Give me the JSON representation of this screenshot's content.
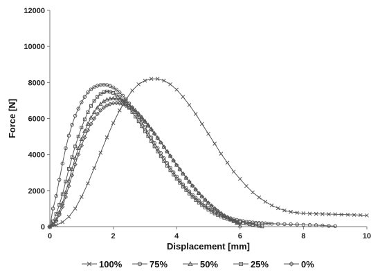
{
  "chart_data": {
    "type": "line",
    "title": "",
    "xlabel": "Displacement [mm]",
    "ylabel": "Force [N]",
    "xlim": [
      0,
      10
    ],
    "ylim": [
      0,
      12000
    ],
    "x_ticks": [
      0,
      2,
      4,
      6,
      8,
      10
    ],
    "y_ticks": [
      0,
      2000,
      4000,
      6000,
      8000,
      10000,
      12000
    ],
    "x_tick_labels": [
      "0",
      "2",
      "4",
      "6",
      "8",
      "10"
    ],
    "y_tick_labels": [
      "0",
      "2000",
      "4000",
      "6000",
      "8000",
      "10000",
      "12000"
    ],
    "grid": false,
    "legend_position": "bottom",
    "series": [
      {
        "name": "100%",
        "marker": "x",
        "color": "#555555",
        "x": [
          0,
          0.2,
          0.4,
          0.6,
          0.8,
          1.0,
          1.2,
          1.4,
          1.6,
          1.8,
          2.0,
          2.2,
          2.4,
          2.6,
          2.8,
          3.0,
          3.2,
          3.4,
          3.6,
          3.8,
          4.0,
          4.2,
          4.4,
          4.6,
          4.8,
          5.0,
          5.2,
          5.4,
          5.6,
          5.8,
          6.0,
          6.2,
          6.4,
          6.6,
          6.8,
          7.0,
          7.2,
          7.4,
          7.6,
          7.8,
          8.0,
          8.2,
          8.4,
          8.6,
          8.8,
          9.0,
          9.2,
          9.4,
          9.6,
          9.8,
          10.0
        ],
        "y": [
          0,
          80,
          250,
          550,
          1000,
          1650,
          2400,
          3250,
          4100,
          4950,
          5750,
          6450,
          7050,
          7550,
          7900,
          8100,
          8200,
          8200,
          8100,
          7900,
          7600,
          7200,
          6750,
          6250,
          5700,
          5150,
          4600,
          4050,
          3550,
          3050,
          2650,
          2250,
          1900,
          1620,
          1380,
          1180,
          1020,
          900,
          820,
          770,
          740,
          720,
          710,
          700,
          690,
          680,
          670,
          660,
          650,
          640,
          620
        ]
      },
      {
        "name": "75%",
        "marker": "circle",
        "color": "#555555",
        "x": [
          0,
          0.1,
          0.2,
          0.3,
          0.4,
          0.5,
          0.6,
          0.7,
          0.8,
          0.9,
          1.0,
          1.1,
          1.2,
          1.3,
          1.4,
          1.5,
          1.6,
          1.7,
          1.8,
          1.9,
          2.0,
          2.1,
          2.2,
          2.3,
          2.4,
          2.5,
          2.6,
          2.7,
          2.8,
          2.9,
          3.0,
          3.1,
          3.2,
          3.3,
          3.4,
          3.5,
          3.6,
          3.7,
          3.8,
          3.9,
          4.0,
          4.1,
          4.2,
          4.3,
          4.4,
          4.5,
          4.6,
          4.7,
          4.8,
          4.9,
          5.0,
          5.1,
          5.2,
          5.3,
          5.4,
          5.5,
          5.6,
          5.7,
          5.8,
          5.9,
          6.0,
          6.1,
          6.2,
          6.3,
          6.4,
          6.5,
          6.6,
          6.7,
          6.8,
          6.9,
          7.0,
          7.2,
          7.4,
          7.6,
          7.8,
          8.0,
          8.2,
          8.4,
          8.6,
          8.8,
          9.0
        ],
        "y": [
          0,
          1000,
          1700,
          2600,
          3500,
          4350,
          5050,
          5650,
          6150,
          6550,
          6900,
          7200,
          7450,
          7620,
          7740,
          7820,
          7860,
          7870,
          7860,
          7810,
          7720,
          7600,
          7450,
          7270,
          7060,
          6840,
          6600,
          6350,
          6080,
          5800,
          5520,
          5230,
          4940,
          4650,
          4360,
          4080,
          3800,
          3530,
          3270,
          3020,
          2780,
          2560,
          2340,
          2140,
          1950,
          1770,
          1600,
          1450,
          1300,
          1170,
          1040,
          930,
          830,
          740,
          660,
          590,
          520,
          460,
          410,
          370,
          330,
          300,
          270,
          250,
          230,
          210,
          200,
          190,
          180,
          170,
          160,
          150,
          140,
          130,
          120,
          100,
          90,
          80,
          60,
          40,
          30
        ]
      },
      {
        "name": "50%",
        "marker": "triangle",
        "color": "#555555",
        "x": [
          0,
          0.1,
          0.2,
          0.3,
          0.4,
          0.5,
          0.6,
          0.7,
          0.8,
          0.9,
          1.0,
          1.1,
          1.2,
          1.3,
          1.4,
          1.5,
          1.6,
          1.7,
          1.8,
          1.9,
          2.0,
          2.1,
          2.2,
          2.3,
          2.4,
          2.5,
          2.6,
          2.7,
          2.8,
          2.9,
          3.0,
          3.1,
          3.2,
          3.3,
          3.4,
          3.5,
          3.6,
          3.7,
          3.8,
          3.9,
          4.0,
          4.1,
          4.2,
          4.3,
          4.4,
          4.5,
          4.6,
          4.7,
          4.8,
          4.9,
          5.0,
          5.1,
          5.2,
          5.3,
          5.4,
          5.5,
          5.6,
          5.7,
          5.8,
          5.9,
          6.0
        ],
        "y": [
          0,
          150,
          400,
          800,
          1300,
          1900,
          2550,
          3200,
          3800,
          4350,
          4850,
          5300,
          5700,
          6050,
          6350,
          6600,
          6800,
          6950,
          7050,
          7100,
          7120,
          7100,
          7050,
          6980,
          6880,
          6760,
          6620,
          6460,
          6280,
          6080,
          5870,
          5650,
          5420,
          5180,
          4930,
          4680,
          4430,
          4170,
          3920,
          3670,
          3420,
          3180,
          2940,
          2710,
          2490,
          2270,
          2060,
          1860,
          1670,
          1490,
          1320,
          1160,
          1010,
          870,
          740,
          620,
          510,
          400,
          300,
          200,
          50
        ]
      },
      {
        "name": "25%",
        "marker": "square",
        "color": "#555555",
        "x": [
          0,
          0.1,
          0.2,
          0.3,
          0.4,
          0.5,
          0.6,
          0.7,
          0.8,
          0.9,
          1.0,
          1.1,
          1.2,
          1.3,
          1.4,
          1.5,
          1.6,
          1.7,
          1.8,
          1.9,
          2.0,
          2.1,
          2.2,
          2.3,
          2.4,
          2.5,
          2.6,
          2.7,
          2.8,
          2.9,
          3.0,
          3.1,
          3.2,
          3.3,
          3.4,
          3.5,
          3.6,
          3.7,
          3.8,
          3.9,
          4.0,
          4.1,
          4.2,
          4.3,
          4.4,
          4.5,
          4.6,
          4.7,
          4.8,
          4.9,
          5.0,
          5.1,
          5.2,
          5.3,
          5.4,
          5.5,
          5.6,
          5.7,
          5.8,
          5.9,
          6.0,
          6.1,
          6.2,
          6.3,
          6.4,
          6.5,
          6.6,
          6.7
        ],
        "y": [
          0,
          300,
          700,
          1200,
          1800,
          2500,
          3200,
          3850,
          4450,
          5000,
          5500,
          5950,
          6350,
          6700,
          6980,
          7200,
          7360,
          7460,
          7500,
          7480,
          7420,
          7320,
          7180,
          7010,
          6810,
          6590,
          6350,
          6100,
          5840,
          5570,
          5290,
          5010,
          4730,
          4450,
          4170,
          3900,
          3630,
          3370,
          3120,
          2880,
          2650,
          2430,
          2220,
          2020,
          1830,
          1650,
          1480,
          1330,
          1190,
          1060,
          940,
          830,
          730,
          640,
          560,
          490,
          430,
          380,
          330,
          290,
          250,
          210,
          170,
          130,
          100,
          70,
          40,
          10
        ]
      },
      {
        "name": "0%",
        "marker": "diamond",
        "color": "#555555",
        "x": [
          0,
          0.1,
          0.2,
          0.3,
          0.4,
          0.5,
          0.6,
          0.7,
          0.8,
          0.9,
          1.0,
          1.1,
          1.2,
          1.3,
          1.4,
          1.5,
          1.6,
          1.7,
          1.8,
          1.9,
          2.0,
          2.1,
          2.2,
          2.3,
          2.4,
          2.5,
          2.6,
          2.7,
          2.8,
          2.9,
          3.0,
          3.1,
          3.2,
          3.3,
          3.4,
          3.5,
          3.6,
          3.7,
          3.8,
          3.9,
          4.0,
          4.1,
          4.2,
          4.3,
          4.4,
          4.5,
          4.6,
          4.7,
          4.8,
          4.9,
          5.0,
          5.1,
          5.2,
          5.3,
          5.4,
          5.5,
          5.6,
          5.7,
          5.8,
          5.9,
          6.0
        ],
        "y": [
          0,
          100,
          300,
          650,
          1100,
          1650,
          2250,
          2850,
          3450,
          4000,
          4500,
          4950,
          5350,
          5700,
          6000,
          6250,
          6450,
          6600,
          6720,
          6800,
          6850,
          6860,
          6840,
          6790,
          6710,
          6610,
          6490,
          6350,
          6190,
          6010,
          5810,
          5600,
          5380,
          5150,
          4910,
          4670,
          4420,
          4170,
          3920,
          3670,
          3420,
          3180,
          2940,
          2710,
          2490,
          2270,
          2060,
          1860,
          1670,
          1490,
          1320,
          1160,
          1010,
          870,
          740,
          620,
          510,
          410,
          320,
          240,
          170
        ]
      }
    ]
  }
}
